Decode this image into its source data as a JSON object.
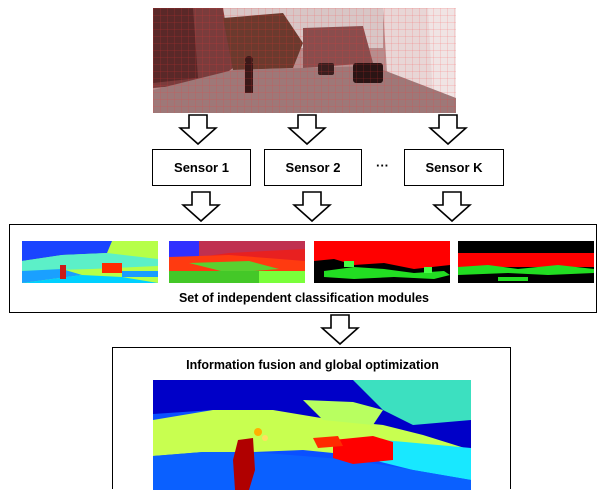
{
  "sensors": [
    {
      "label": "Sensor 1"
    },
    {
      "label": "Sensor 2"
    },
    {
      "label": "Sensor K"
    }
  ],
  "ellipsis": "···",
  "modules_caption": "Set of independent classification modules",
  "fusion_caption": "Information fusion and global optimization",
  "icons": {
    "arrow": "down-arrow-icon"
  }
}
